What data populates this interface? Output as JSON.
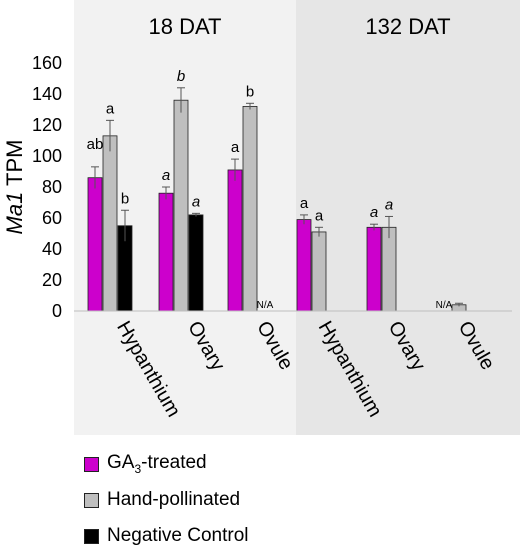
{
  "chart_data": {
    "type": "bar",
    "ylabel_italic": "Ma1",
    "ylabel_rest": " TPM",
    "ylim": [
      0,
      160
    ],
    "yticks": [
      0,
      20,
      40,
      60,
      80,
      100,
      120,
      140,
      160
    ],
    "panels": [
      {
        "label": "18 DAT",
        "shade": "#f2f2f2"
      },
      {
        "label": "132 DAT",
        "shade": "#e6e6e6"
      }
    ],
    "series": [
      {
        "name": "GA3-treated",
        "label_main": "GA",
        "label_sub": "3",
        "label_suffix": "-treated",
        "color": "#cc00cc"
      },
      {
        "name": "Hand-pollinated",
        "label_main": "Hand-pollinated",
        "label_sub": "",
        "label_suffix": "",
        "color": "#bfbfbf"
      },
      {
        "name": "Negative Control",
        "label_main": "Negative Control",
        "label_sub": "",
        "label_suffix": "",
        "color": "#000000"
      }
    ],
    "groups": [
      {
        "category": "Hypanthium",
        "panel": 0,
        "bars": [
          {
            "value": 86,
            "err": 7,
            "letter": "",
            "italic": false
          },
          {
            "value": 113,
            "err": 10,
            "letter": "a",
            "italic": false
          },
          {
            "value": 55,
            "err": 10,
            "letter": "b",
            "italic": false
          }
        ],
        "extra_letters": [
          {
            "text": "ab",
            "italic": false
          }
        ]
      },
      {
        "category": "Ovary",
        "panel": 0,
        "bars": [
          {
            "value": 76,
            "err": 4,
            "letter": "a",
            "italic": true
          },
          {
            "value": 136,
            "err": 8,
            "letter": "b",
            "italic": true
          },
          {
            "value": 62,
            "err": 1,
            "letter": "a",
            "italic": true
          }
        ]
      },
      {
        "category": "Ovule",
        "panel": 0,
        "bars": [
          {
            "value": 91,
            "err": 7,
            "letter": "a",
            "italic": false
          },
          {
            "value": 132,
            "err": 2,
            "letter": "b",
            "italic": false
          },
          {
            "value": null,
            "err": 0,
            "letter": "N/A",
            "italic": false
          }
        ]
      },
      {
        "category": "Hypanthium",
        "panel": 1,
        "bars": [
          {
            "value": 59,
            "err": 3,
            "letter": "a",
            "italic": false
          },
          {
            "value": 51,
            "err": 3,
            "letter": "a",
            "italic": false
          }
        ]
      },
      {
        "category": "Ovary",
        "panel": 1,
        "bars": [
          {
            "value": 54,
            "err": 2,
            "letter": "a",
            "italic": true
          },
          {
            "value": 54,
            "err": 7,
            "letter": "a",
            "italic": true
          }
        ]
      },
      {
        "category": "Ovule",
        "panel": 1,
        "bars": [
          {
            "value": null,
            "err": 0,
            "letter": "N/A",
            "italic": false
          },
          {
            "value": 4,
            "err": 1,
            "letter": "",
            "italic": false
          }
        ]
      }
    ]
  }
}
